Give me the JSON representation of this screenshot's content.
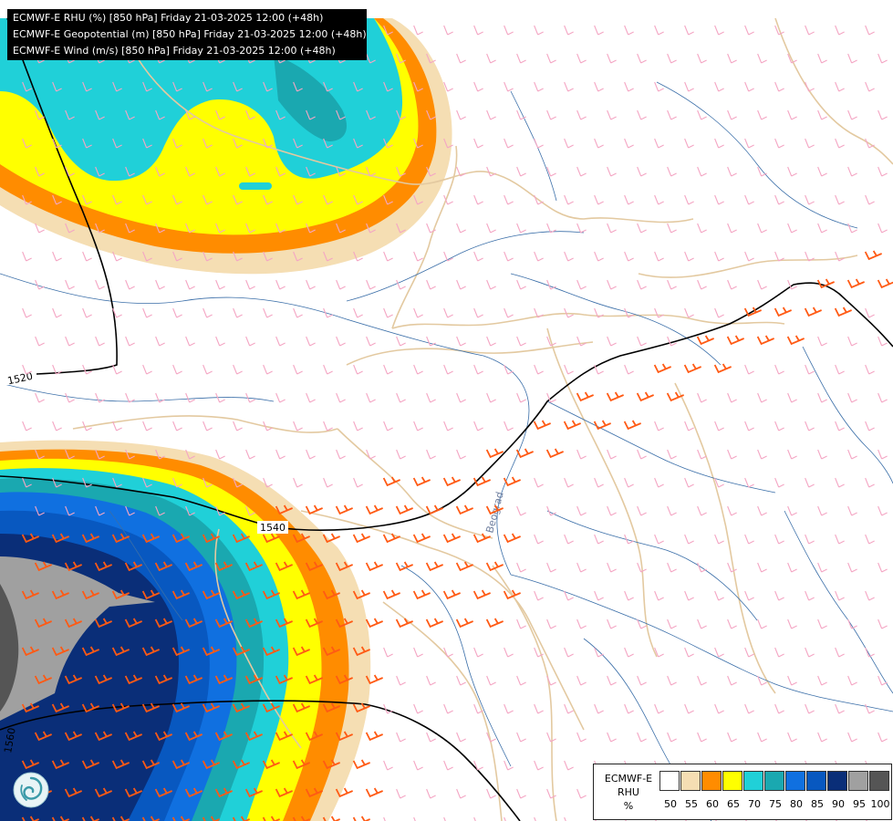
{
  "titles": [
    "ECMWF-E RHU (%) [850 hPa] Friday 21-03-2025 12:00 (+48h)",
    "ECMWF-E Geopotential (m) [850 hPa] Friday 21-03-2025 12:00 (+48h)",
    "ECMWF-E Wind (m/s) [850 hPa] Friday 21-03-2025 12:00 (+48h)"
  ],
  "contour_labels": [
    "1520",
    "1540",
    "1560"
  ],
  "city_label": "Beograd",
  "legend": {
    "name_line1": "ECMWF-E",
    "name_line2": "RHU",
    "unit": "%",
    "levels": [
      "50",
      "55",
      "60",
      "65",
      "70",
      "75",
      "80",
      "85",
      "90",
      "95",
      "100"
    ],
    "colors": [
      "#ffffff",
      "#f5deb3",
      "#ff8c00",
      "#ffff00",
      "#20d0d8",
      "#1aa8b0",
      "#1070e0",
      "#0858c0",
      "#0a2e78",
      "#a0a0a0",
      "#555555"
    ]
  },
  "colors": {
    "wind_weak": "#f4a6c4",
    "wind_strong": "#ff5a14",
    "border": "#e3c9a0",
    "river": "#3a6ea8",
    "contour": "#000000"
  },
  "icons": {
    "logo": "ecmwf-swirl-icon"
  }
}
